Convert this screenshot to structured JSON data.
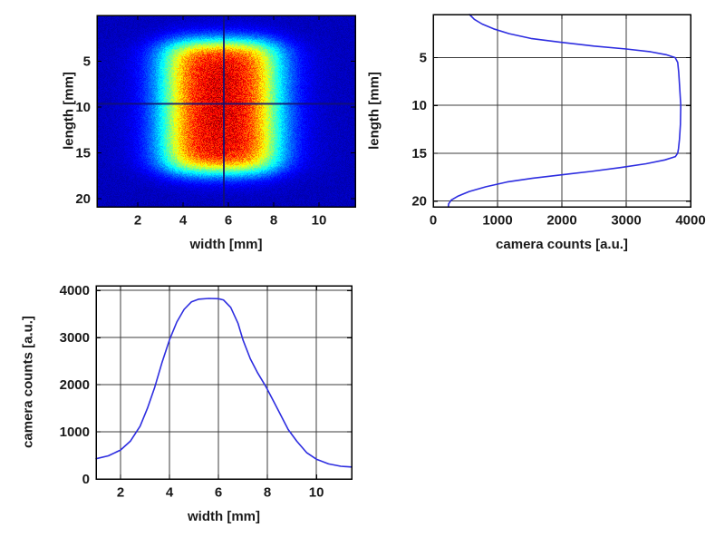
{
  "page": {
    "background": "#ffffff"
  },
  "style": {
    "curve_color": "#2d2de0",
    "grid_color": "#3c3c3c",
    "axis_color": "#000000",
    "text_color": "#1a1a1a",
    "crosshair_color": "rgba(18,18,115,0.9)"
  },
  "chart_data": [
    {
      "id": "beam_image",
      "type": "heatmap",
      "title": "",
      "xlabel": "width [mm]",
      "ylabel": "length [mm]",
      "xlim": [
        0.2,
        11.6
      ],
      "ylim": [
        0,
        20.9
      ],
      "y_down": true,
      "xticks": [
        2,
        4,
        6,
        8,
        10
      ],
      "yticks": [
        5,
        10,
        15,
        20
      ],
      "grid": false,
      "colormap": "jet",
      "beam": {
        "peak_counts": 3830,
        "background_counts": 240,
        "scale_max_counts": 4095,
        "x_rise_mid_mm": 3.4,
        "x_fall_mid_mm": 7.95,
        "x_edge_sigma_mm": 0.58,
        "y_rise_mid_mm": 3.0,
        "y_fall_mid_mm": 16.95,
        "y_edge_sigma_mm": 0.65
      },
      "crosshair": {
        "x_mm": 5.8,
        "y_mm": 9.65
      }
    },
    {
      "id": "length_profile",
      "type": "line",
      "title": "",
      "xlabel": "camera counts [a.u.]",
      "ylabel": "length [mm]",
      "xlim": [
        0,
        4000
      ],
      "ylim": [
        0.5,
        20.6
      ],
      "y_down": true,
      "xticks": [
        0,
        1000,
        2000,
        3000,
        4000
      ],
      "yticks": [
        5,
        10,
        15,
        20
      ],
      "grid": true,
      "points": [
        [
          565,
          0.5
        ],
        [
          640,
          1.0
        ],
        [
          760,
          1.5
        ],
        [
          940,
          2.0
        ],
        [
          1180,
          2.5
        ],
        [
          1520,
          3.0
        ],
        [
          1980,
          3.4
        ],
        [
          2500,
          3.8
        ],
        [
          3000,
          4.1
        ],
        [
          3380,
          4.4
        ],
        [
          3620,
          4.7
        ],
        [
          3760,
          5.0
        ],
        [
          3800,
          5.5
        ],
        [
          3815,
          6.5
        ],
        [
          3830,
          8.0
        ],
        [
          3848,
          10.0
        ],
        [
          3842,
          12.0
        ],
        [
          3828,
          13.5
        ],
        [
          3812,
          14.5
        ],
        [
          3800,
          15.0
        ],
        [
          3765,
          15.35
        ],
        [
          3600,
          15.7
        ],
        [
          3310,
          16.1
        ],
        [
          2900,
          16.5
        ],
        [
          2450,
          16.9
        ],
        [
          2000,
          17.25
        ],
        [
          1550,
          17.6
        ],
        [
          1150,
          18.0
        ],
        [
          820,
          18.5
        ],
        [
          560,
          19.0
        ],
        [
          380,
          19.5
        ],
        [
          280,
          19.9
        ],
        [
          240,
          20.3
        ],
        [
          235,
          20.6
        ]
      ]
    },
    {
      "id": "width_profile",
      "type": "line",
      "title": "",
      "xlabel": "width [mm]",
      "ylabel": "camera counts [a.u.]",
      "xlim": [
        1,
        11.44
      ],
      "ylim": [
        0,
        4100
      ],
      "y_down": false,
      "xticks": [
        2,
        4,
        6,
        8,
        10
      ],
      "yticks": [
        0,
        1000,
        2000,
        3000,
        4000
      ],
      "grid": true,
      "points": [
        [
          1.0,
          430
        ],
        [
          1.5,
          490
        ],
        [
          2.0,
          615
        ],
        [
          2.4,
          800
        ],
        [
          2.8,
          1120
        ],
        [
          3.1,
          1500
        ],
        [
          3.4,
          1950
        ],
        [
          3.7,
          2480
        ],
        [
          4.0,
          2950
        ],
        [
          4.3,
          3330
        ],
        [
          4.6,
          3600
        ],
        [
          4.9,
          3760
        ],
        [
          5.2,
          3815
        ],
        [
          5.6,
          3830
        ],
        [
          6.0,
          3825
        ],
        [
          6.2,
          3800
        ],
        [
          6.5,
          3640
        ],
        [
          6.8,
          3300
        ],
        [
          7.0,
          2950
        ],
        [
          7.3,
          2550
        ],
        [
          7.6,
          2250
        ],
        [
          7.95,
          1950
        ],
        [
          8.3,
          1600
        ],
        [
          8.85,
          1050
        ],
        [
          9.2,
          800
        ],
        [
          9.6,
          560
        ],
        [
          10.0,
          420
        ],
        [
          10.5,
          320
        ],
        [
          11.0,
          270
        ],
        [
          11.44,
          255
        ]
      ]
    }
  ]
}
